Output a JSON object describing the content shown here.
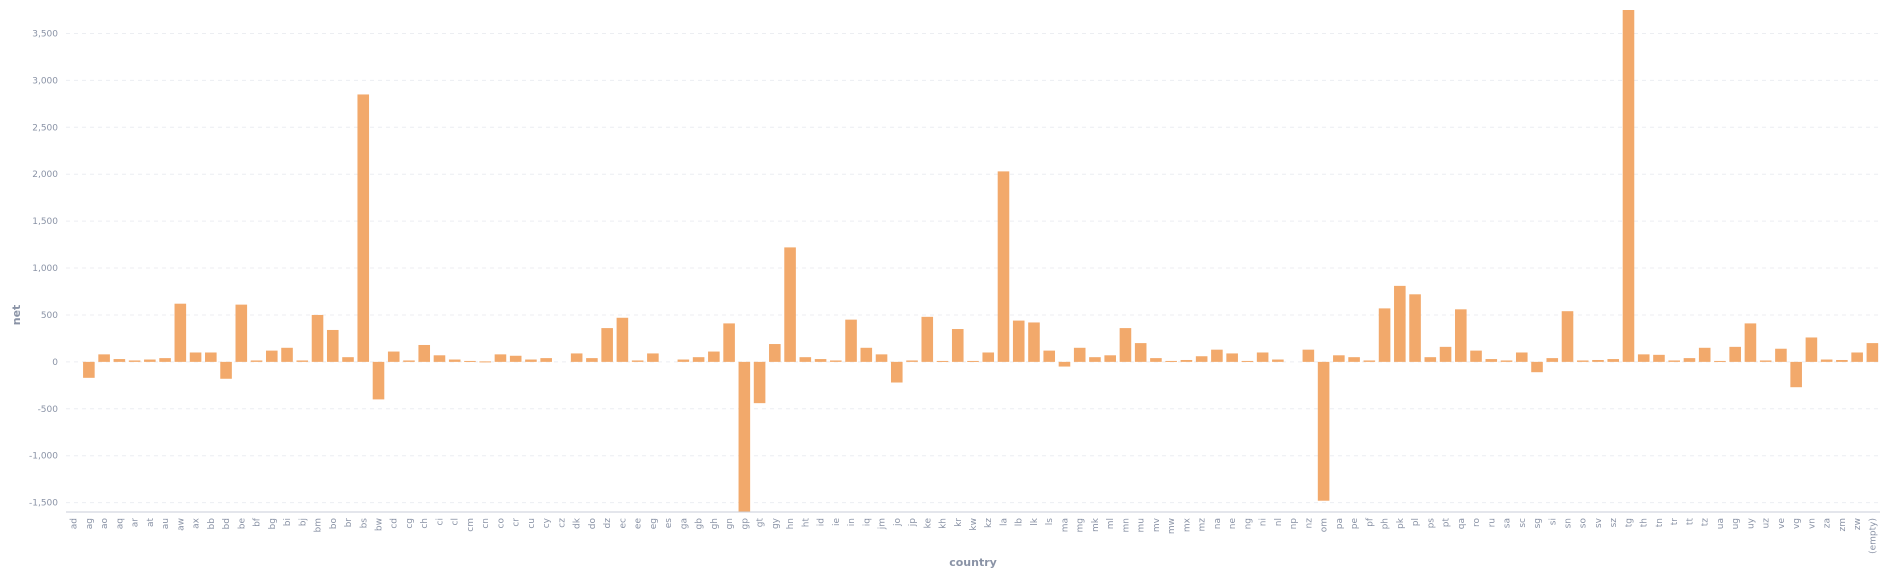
{
  "chart_data": {
    "type": "bar",
    "xlabel": "country",
    "ylabel": "net",
    "ylim": [
      -1600,
      3750
    ],
    "yticks": [
      -1500,
      -1000,
      -500,
      0,
      500,
      1000,
      1500,
      2000,
      2500,
      3000,
      3500
    ],
    "ytick_labels": [
      "-1,500",
      "-1,000",
      "-500",
      "0",
      "500",
      "1,000",
      "1,500",
      "2,000",
      "2,500",
      "3,000",
      "3,500"
    ],
    "bar_color": "#f2a96b",
    "grid": true,
    "categories": [
      "ad",
      "ag",
      "ao",
      "aq",
      "ar",
      "at",
      "au",
      "aw",
      "ax",
      "bb",
      "bd",
      "be",
      "bf",
      "bg",
      "bi",
      "bj",
      "bm",
      "bo",
      "br",
      "bs",
      "bw",
      "cd",
      "cg",
      "ch",
      "ci",
      "cl",
      "cm",
      "cn",
      "co",
      "cr",
      "cu",
      "cy",
      "cz",
      "dk",
      "do",
      "dz",
      "ec",
      "ee",
      "eg",
      "es",
      "ga",
      "gb",
      "gh",
      "gn",
      "gp",
      "gt",
      "gy",
      "hn",
      "ht",
      "id",
      "ie",
      "in",
      "iq",
      "jm",
      "jo",
      "jp",
      "ke",
      "kh",
      "kr",
      "kw",
      "kz",
      "la",
      "lb",
      "lk",
      "ls",
      "ma",
      "mg",
      "mk",
      "ml",
      "mn",
      "mu",
      "mv",
      "mw",
      "mx",
      "mz",
      "na",
      "ne",
      "ng",
      "ni",
      "nl",
      "np",
      "nz",
      "om",
      "pa",
      "pe",
      "pf",
      "ph",
      "pk",
      "pl",
      "ps",
      "pt",
      "qa",
      "ro",
      "ru",
      "sa",
      "sc",
      "sg",
      "si",
      "sn",
      "so",
      "sv",
      "sz",
      "tg",
      "th",
      "tn",
      "tr",
      "tt",
      "tz",
      "ua",
      "ug",
      "uy",
      "uz",
      "ve",
      "vg",
      "vn",
      "za",
      "zm",
      "zw",
      "(empty)"
    ],
    "values": [
      0,
      -170,
      80,
      30,
      15,
      25,
      40,
      620,
      100,
      100,
      -180,
      610,
      15,
      120,
      150,
      15,
      500,
      340,
      50,
      2850,
      -400,
      110,
      15,
      180,
      70,
      25,
      10,
      5,
      80,
      65,
      25,
      40,
      0,
      90,
      40,
      360,
      470,
      15,
      90,
      0,
      25,
      50,
      110,
      410,
      -1600,
      -440,
      190,
      1220,
      50,
      30,
      15,
      450,
      150,
      80,
      -220,
      15,
      480,
      10,
      350,
      10,
      100,
      2030,
      440,
      420,
      120,
      -50,
      150,
      50,
      70,
      360,
      200,
      40,
      10,
      20,
      60,
      130,
      90,
      10,
      100,
      25,
      0,
      130,
      -1480,
      70,
      50,
      15,
      570,
      810,
      720,
      50,
      160,
      560,
      120,
      30,
      15,
      100,
      -110,
      40,
      540,
      15,
      20,
      30,
      3750,
      80,
      75,
      15,
      40,
      150,
      10,
      160,
      410,
      15,
      140,
      -270,
      260,
      25,
      20,
      100,
      200
    ]
  }
}
